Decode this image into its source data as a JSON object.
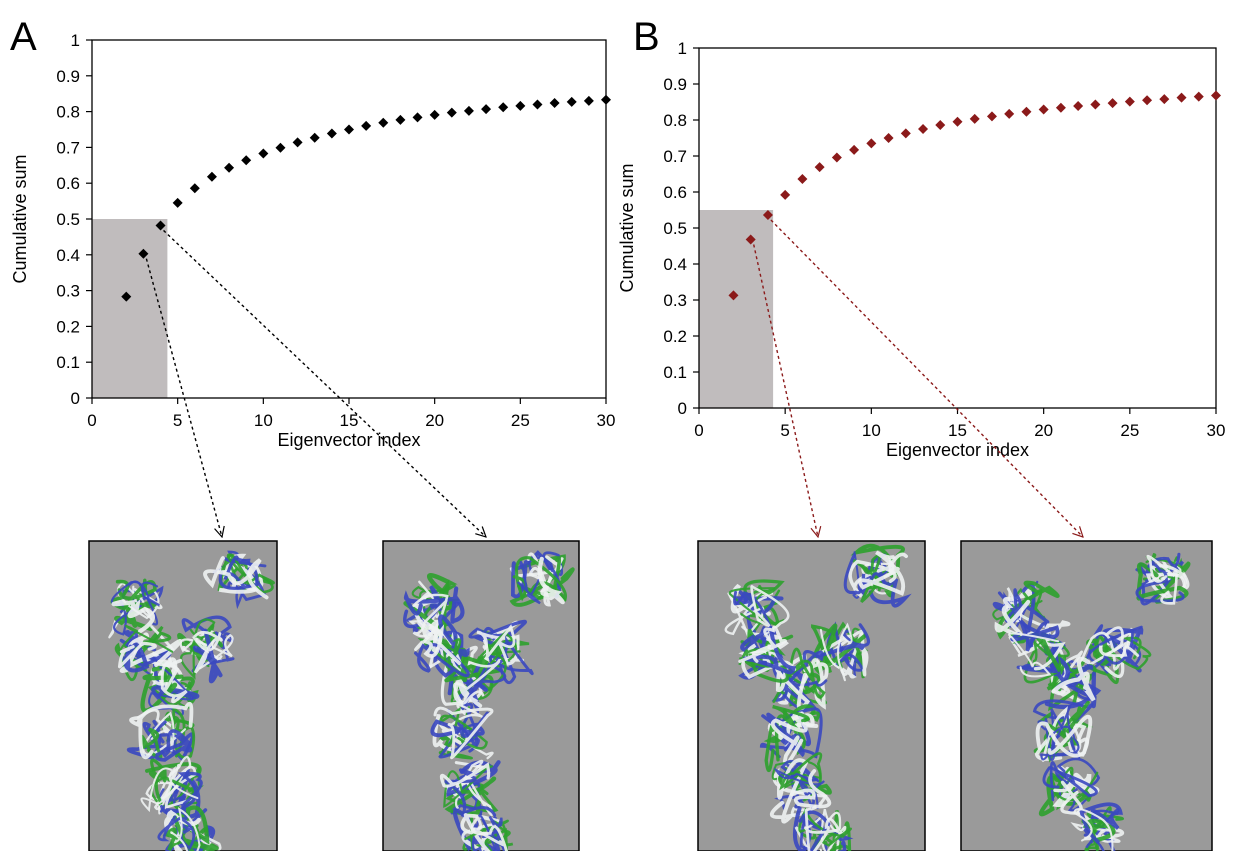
{
  "colors": {
    "series_a": "#000000",
    "series_b": "#8b1a1a",
    "highlight": "#c0bcbd",
    "structure_bg": "#9a9a9a",
    "ribbon_green": "#2ea12e",
    "ribbon_blue": "#3a48c0",
    "ribbon_white": "#eef2f2"
  },
  "chart_data": [
    {
      "type": "scatter",
      "panel_label": "A",
      "title": "",
      "xlabel": "Eigenvector index",
      "ylabel": "Cumulative sum",
      "xlim": [
        0,
        30
      ],
      "ylim": [
        0,
        1
      ],
      "xticks": [
        0,
        5,
        10,
        15,
        20,
        25,
        30
      ],
      "yticks": [
        0,
        0.1,
        0.2,
        0.3,
        0.4,
        0.5,
        0.6,
        0.7,
        0.8,
        0.9,
        1
      ],
      "grid": false,
      "marker": "diamond",
      "color": "#000000",
      "highlight_region": {
        "x": [
          0,
          4.4
        ],
        "y": [
          0,
          0.5
        ]
      },
      "arrows_from": [
        3,
        4
      ],
      "x": [
        2,
        3,
        4,
        5,
        6,
        7,
        8,
        9,
        10,
        11,
        12,
        13,
        14,
        15,
        16,
        17,
        18,
        19,
        20,
        21,
        22,
        23,
        24,
        25,
        26,
        27,
        28,
        29,
        30
      ],
      "y": [
        0.283,
        0.403,
        0.482,
        0.545,
        0.586,
        0.618,
        0.643,
        0.664,
        0.683,
        0.699,
        0.714,
        0.727,
        0.739,
        0.75,
        0.76,
        0.769,
        0.777,
        0.784,
        0.791,
        0.797,
        0.802,
        0.807,
        0.812,
        0.816,
        0.82,
        0.824,
        0.827,
        0.83,
        0.833
      ]
    },
    {
      "type": "scatter",
      "panel_label": "B",
      "title": "",
      "xlabel": "Eigenvector index",
      "ylabel": "Cumulative sum",
      "xlim": [
        0,
        30
      ],
      "ylim": [
        0,
        1
      ],
      "xticks": [
        0,
        5,
        10,
        15,
        20,
        25,
        30
      ],
      "yticks": [
        0,
        0.1,
        0.2,
        0.3,
        0.4,
        0.5,
        0.6,
        0.7,
        0.8,
        0.9,
        1
      ],
      "grid": false,
      "marker": "diamond",
      "color": "#8b1a1a",
      "highlight_region": {
        "x": [
          0,
          4.3
        ],
        "y": [
          0,
          0.55
        ]
      },
      "arrows_from": [
        3,
        4
      ],
      "x": [
        2,
        3,
        4,
        5,
        6,
        7,
        8,
        9,
        10,
        11,
        12,
        13,
        14,
        15,
        16,
        17,
        18,
        19,
        20,
        21,
        22,
        23,
        24,
        25,
        26,
        27,
        28,
        29,
        30
      ],
      "y": [
        0.313,
        0.468,
        0.536,
        0.592,
        0.636,
        0.669,
        0.696,
        0.717,
        0.735,
        0.75,
        0.763,
        0.775,
        0.786,
        0.795,
        0.803,
        0.81,
        0.817,
        0.823,
        0.829,
        0.834,
        0.839,
        0.843,
        0.847,
        0.851,
        0.855,
        0.858,
        0.862,
        0.865,
        0.868
      ]
    }
  ]
}
